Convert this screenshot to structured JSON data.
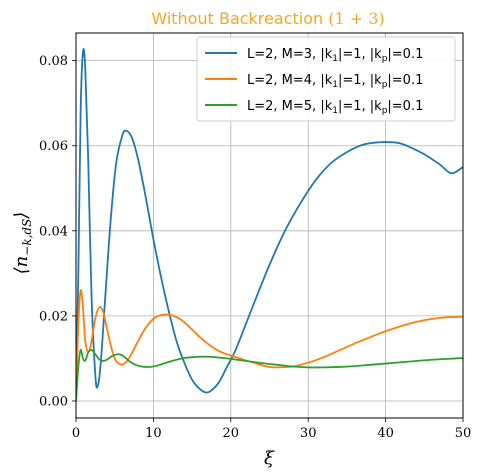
{
  "chart_data": {
    "type": "line",
    "title": "Without Backreaction (1 + 3)",
    "title_color": "#f5a623",
    "xlabel": "ξ",
    "ylabel": "⟨n−k,dS⟩",
    "xlim": [
      0,
      50
    ],
    "ylim": [
      -0.004,
      0.0865
    ],
    "xticks": [
      0,
      10,
      20,
      30,
      40,
      50
    ],
    "xtick_labels": [
      "0",
      "10",
      "20",
      "30",
      "40",
      "50"
    ],
    "yticks": [
      0.0,
      0.02,
      0.04,
      0.06,
      0.08
    ],
    "ytick_labels": [
      "0.00",
      "0.02",
      "0.04",
      "0.06",
      "0.08"
    ],
    "grid": true,
    "legend_position": "top-right",
    "series": [
      {
        "name": "L=2, M=3, |k1|=1, |kp|=0.1",
        "color": "#1f77b4",
        "x": [
          0,
          0.3,
          0.6,
          0.9,
          1.2,
          1.6,
          2.0,
          2.5,
          2.8,
          3.2,
          3.8,
          4.5,
          5.2,
          6.0,
          6.5,
          7.2,
          8.0,
          9.0,
          10.0,
          11.0,
          12.0,
          13.0,
          14.0,
          15.0,
          16.0,
          16.8,
          17.5,
          18.5,
          19.5,
          20.5,
          21.5,
          23.0,
          25.0,
          27.0,
          29.0,
          31.0,
          33.0,
          35.0,
          37.0,
          39.0,
          41.0,
          42.0,
          43.0,
          45.0,
          47.0,
          48.5,
          50.0
        ],
        "y": [
          0.0,
          0.03,
          0.068,
          0.082,
          0.078,
          0.055,
          0.025,
          0.006,
          0.0035,
          0.009,
          0.025,
          0.043,
          0.056,
          0.0625,
          0.0635,
          0.062,
          0.057,
          0.048,
          0.038,
          0.029,
          0.021,
          0.014,
          0.009,
          0.005,
          0.0028,
          0.002,
          0.0025,
          0.0045,
          0.008,
          0.0115,
          0.016,
          0.023,
          0.032,
          0.04,
          0.0465,
          0.052,
          0.056,
          0.0585,
          0.0602,
          0.0608,
          0.0608,
          0.0605,
          0.0598,
          0.058,
          0.0556,
          0.0535,
          0.055
        ]
      },
      {
        "name": "L=2, M=4, |k1|=1, |kp|=0.1",
        "color": "#ff7f0e",
        "x": [
          0,
          0.3,
          0.6,
          0.9,
          1.2,
          1.6,
          2.0,
          2.5,
          3.0,
          3.5,
          4.0,
          4.5,
          5.0,
          5.5,
          6.0,
          6.5,
          7.0,
          8.0,
          9.0,
          10.0,
          11.0,
          12.0,
          13.0,
          14.0,
          15.0,
          16.0,
          17.0,
          18.0,
          19.0,
          20.0,
          21.0,
          22.0,
          23.0,
          24.0,
          25.0,
          26.0,
          28.0,
          30.0,
          32.0,
          34.0,
          36.0,
          38.0,
          40.0,
          42.0,
          44.0,
          46.0,
          48.0,
          50.0
        ],
        "y": [
          0.0,
          0.018,
          0.026,
          0.022,
          0.014,
          0.0115,
          0.014,
          0.0195,
          0.022,
          0.021,
          0.017,
          0.013,
          0.01,
          0.0088,
          0.0086,
          0.0092,
          0.0105,
          0.014,
          0.0172,
          0.0193,
          0.0202,
          0.0203,
          0.0197,
          0.0185,
          0.0168,
          0.015,
          0.0135,
          0.0122,
          0.0113,
          0.0107,
          0.0101,
          0.0095,
          0.009,
          0.0084,
          0.008,
          0.0079,
          0.0081,
          0.009,
          0.0103,
          0.0119,
          0.0135,
          0.015,
          0.0164,
          0.0176,
          0.0186,
          0.0193,
          0.0197,
          0.0198
        ]
      },
      {
        "name": "L=2, M=5, |k1|=1, |kp|=0.1",
        "color": "#2ca02c",
        "x": [
          0,
          0.3,
          0.6,
          0.9,
          1.2,
          1.6,
          2.0,
          2.5,
          3.0,
          3.5,
          4.0,
          4.5,
          5.0,
          5.5,
          6.0,
          6.5,
          7.0,
          8.0,
          9.0,
          10.0,
          11.0,
          12.0,
          13.0,
          14.0,
          15.0,
          16.0,
          17.0,
          18.0,
          19.0,
          20.0,
          22.0,
          24.0,
          26.0,
          28.0,
          30.0,
          32.0,
          34.0,
          36.0,
          38.0,
          40.0,
          42.0,
          44.0,
          46.0,
          48.0,
          50.0
        ],
        "y": [
          0.0,
          0.008,
          0.012,
          0.01,
          0.0095,
          0.0115,
          0.012,
          0.011,
          0.0098,
          0.0094,
          0.0097,
          0.0104,
          0.0108,
          0.011,
          0.0107,
          0.01,
          0.0092,
          0.0083,
          0.008,
          0.0081,
          0.0086,
          0.0092,
          0.0097,
          0.0101,
          0.0103,
          0.0104,
          0.0104,
          0.0103,
          0.0101,
          0.0099,
          0.0094,
          0.0089,
          0.0085,
          0.0081,
          0.0079,
          0.0079,
          0.008,
          0.0082,
          0.0085,
          0.0088,
          0.0091,
          0.0094,
          0.0097,
          0.0099,
          0.0101
        ]
      }
    ]
  },
  "legend": {
    "items": [
      {
        "label": "L=2, M=3, |k",
        "sub1": "1",
        "mid": "|=1, |k",
        "sub2": "p",
        "tail": "|=0.1"
      },
      {
        "label": "L=2, M=4, |k",
        "sub1": "1",
        "mid": "|=1, |k",
        "sub2": "p",
        "tail": "|=0.1"
      },
      {
        "label": "L=2, M=5, |k",
        "sub1": "1",
        "mid": "|=1, |k",
        "sub2": "p",
        "tail": "|=0.1"
      }
    ]
  },
  "title_parts": {
    "main": "Without Backreaction ",
    "math": "(1 + 3)"
  },
  "ylabel_parts": {
    "open": "⟨",
    "n": "n",
    "sub": "−k,dS",
    "close": "⟩"
  }
}
